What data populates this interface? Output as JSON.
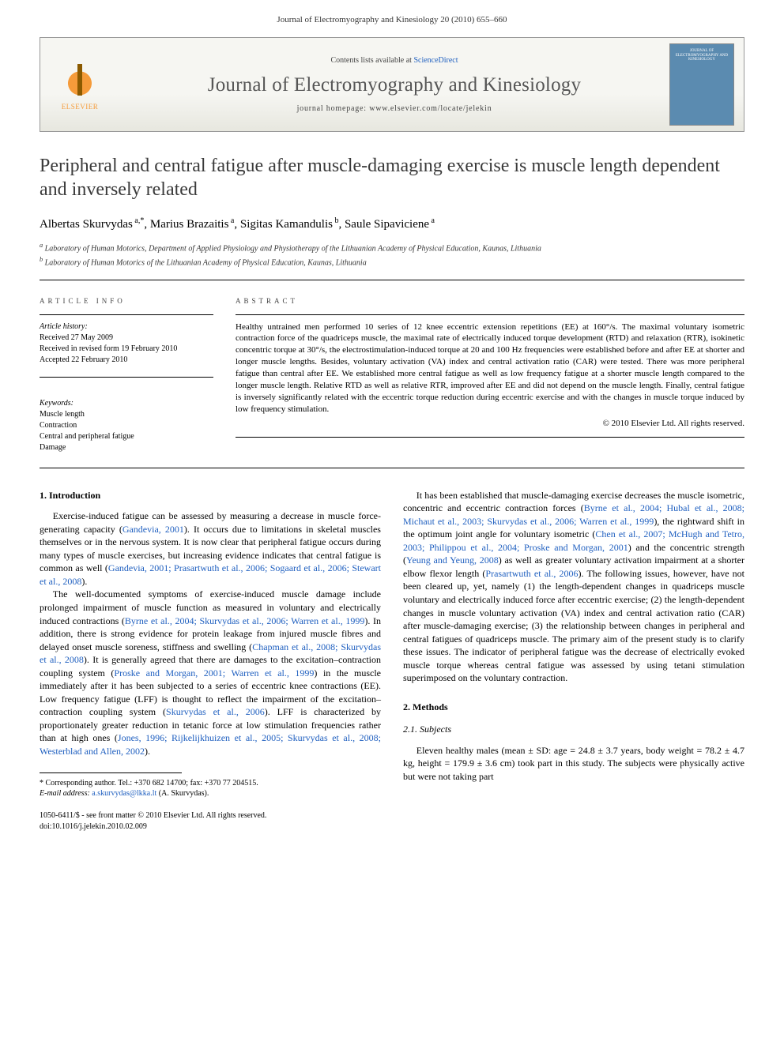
{
  "header": {
    "citation": "Journal of Electromyography and Kinesiology 20 (2010) 655–660"
  },
  "banner": {
    "contents_text": "Contents lists available at ",
    "sd_label": "ScienceDirect",
    "journal_name": "Journal of Electromyography and Kinesiology",
    "homepage_prefix": "journal homepage: ",
    "homepage_url": "www.elsevier.com/locate/jelekin",
    "publisher": "ELSEVIER",
    "cover_text": "JOURNAL OF ELECTROMYOGRAPHY AND KINESIOLOGY"
  },
  "title": "Peripheral and central fatigue after muscle-damaging exercise is muscle length dependent and inversely related",
  "authors": [
    {
      "name": "Albertas Skurvydas",
      "sup": "a,*"
    },
    {
      "name": "Marius Brazaitis",
      "sup": "a"
    },
    {
      "name": "Sigitas Kamandulis",
      "sup": "b"
    },
    {
      "name": "Saule Sipaviciene",
      "sup": "a"
    }
  ],
  "affiliations": [
    {
      "key": "a",
      "text": "Laboratory of Human Motorics, Department of Applied Physiology and Physiotherapy of the Lithuanian Academy of Physical Education, Kaunas, Lithuania"
    },
    {
      "key": "b",
      "text": "Laboratory of Human Motorics of the Lithuanian Academy of Physical Education, Kaunas, Lithuania"
    }
  ],
  "article_info": {
    "head": "ARTICLE INFO",
    "history_head": "Article history:",
    "dates": [
      "Received 27 May 2009",
      "Received in revised form 19 February 2010",
      "Accepted 22 February 2010"
    ],
    "kw_head": "Keywords:",
    "keywords": [
      "Muscle length",
      "Contraction",
      "Central and peripheral fatigue",
      "Damage"
    ]
  },
  "abstract": {
    "head": "ABSTRACT",
    "text": "Healthy untrained men performed 10 series of 12 knee eccentric extension repetitions (EE) at 160°/s. The maximal voluntary isometric contraction force of the quadriceps muscle, the maximal rate of electrically induced torque development (RTD) and relaxation (RTR), isokinetic concentric torque at 30°/s, the electrostimulation-induced torque at 20 and 100 Hz frequencies were established before and after EE at shorter and longer muscle lengths. Besides, voluntary activation (VA) index and central activation ratio (CAR) were tested. There was more peripheral fatigue than central after EE. We established more central fatigue as well as low frequency fatigue at a shorter muscle length compared to the longer muscle length. Relative RTD as well as relative RTR, improved after EE and did not depend on the muscle length. Finally, central fatigue is inversely significantly related with the eccentric torque reduction during eccentric exercise and with the changes in muscle torque induced by low frequency stimulation.",
    "copyright": "© 2010 Elsevier Ltd. All rights reserved."
  },
  "sections": {
    "intro_head": "1. Introduction",
    "intro_p1_a": "Exercise-induced fatigue can be assessed by measuring a decrease in muscle force-generating capacity (",
    "intro_p1_ref1": "Gandevia, 2001",
    "intro_p1_b": "). It occurs due to limitations in skeletal muscles themselves or in the nervous system. It is now clear that peripheral fatigue occurs during many types of muscle exercises, but increasing evidence indicates that central fatigue is common as well (",
    "intro_p1_ref2": "Gandevia, 2001; Prasartwuth et al., 2006; Sogaard et al., 2006; Stewart et al., 2008",
    "intro_p1_c": ").",
    "intro_p2_a": "The well-documented symptoms of exercise-induced muscle damage include prolonged impairment of muscle function as measured in voluntary and electrically induced contractions (",
    "intro_p2_ref1": "Byrne et al., 2004; Skurvydas et al., 2006; Warren et al., 1999",
    "intro_p2_b": "). In addition, there is strong evidence for protein leakage from injured muscle fibres and delayed onset muscle soreness, stiffness and swelling (",
    "intro_p2_ref2": "Chapman et al., 2008; Skurvydas et al., 2008",
    "intro_p2_c": "). It is generally agreed that there are damages to the excitation–contraction coupling system (",
    "intro_p2_ref3": "Proske and Morgan, 2001; Warren et al., 1999",
    "intro_p2_d": ") in the muscle immediately after it has been subjected to a series of eccentric knee contractions (EE). Low frequency fatigue (LFF) is thought to reflect the impairment of the excitation–contraction coupling system (",
    "intro_p2_ref4": "Skurvydas et al., 2006",
    "intro_p2_e": "). LFF is characterized by proportionately greater reduction in tetanic force at low stimulation frequencies rather than at high ones (",
    "intro_p2_ref5": "Jones, 1996; Rijkelijkhuizen et al., 2005; Skurvydas et al., 2008; Westerblad and Allen, 2002",
    "intro_p2_f": ").",
    "col2_p1_a": "It has been established that muscle-damaging exercise decreases the muscle isometric, concentric and eccentric contraction forces (",
    "col2_p1_ref1": "Byrne et al., 2004; Hubal et al., 2008; Michaut et al., 2003; Skurvydas et al., 2006; Warren et al., 1999",
    "col2_p1_b": "), the rightward shift in the optimum joint angle for voluntary isometric (",
    "col2_p1_ref2": "Chen et al., 2007; McHugh and Tetro, 2003; Philippou et al., 2004; Proske and Morgan, 2001",
    "col2_p1_c": ") and the concentric strength (",
    "col2_p1_ref3": "Yeung and Yeung, 2008",
    "col2_p1_d": ") as well as greater voluntary activation impairment at a shorter elbow flexor length (",
    "col2_p1_ref4": "Prasartwuth et al., 2006",
    "col2_p1_e": "). The following issues, however, have not been cleared up, yet, namely (1) the length-dependent changes in quadriceps muscle voluntary and electrically induced force after eccentric exercise; (2) the length-dependent changes in muscle voluntary activation (VA) index and central activation ratio (CAR) after muscle-damaging exercise; (3) the relationship between changes in peripheral and central fatigues of quadriceps muscle. The primary aim of the present study is to clarify these issues. The indicator of peripheral fatigue was the decrease of electrically evoked muscle torque whereas central fatigue was assessed by using tetani stimulation superimposed on the voluntary contraction.",
    "methods_head": "2. Methods",
    "subjects_head": "2.1. Subjects",
    "subjects_p": "Eleven healthy males (mean ± SD: age = 24.8 ± 3.7 years, body weight = 78.2 ± 4.7 kg, height = 179.9 ± 3.6 cm) took part in this study. The subjects were physically active but were not taking part"
  },
  "footnotes": {
    "corr": "* Corresponding author. Tel.: +370 682 14700; fax: +370 77 204515.",
    "email_label": "E-mail address: ",
    "email": "a.skurvydas@lkka.lt",
    "email_tail": " (A. Skurvydas)."
  },
  "pubinfo": {
    "line1": "1050-6411/$ - see front matter © 2010 Elsevier Ltd. All rights reserved.",
    "line2": "doi:10.1016/j.jelekin.2010.02.009"
  }
}
